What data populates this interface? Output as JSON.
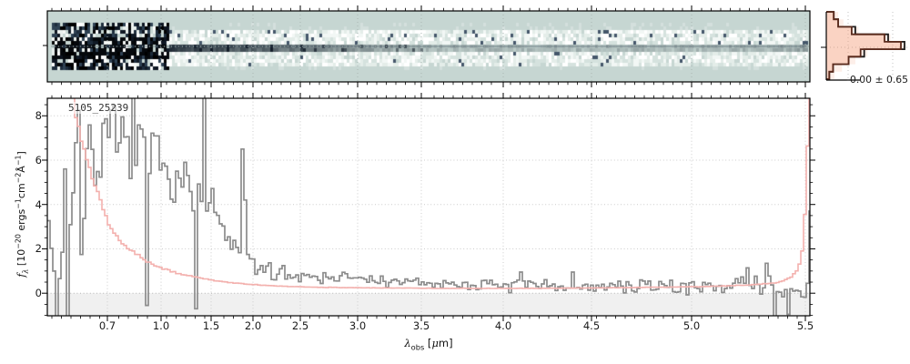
{
  "title_label": "5105_25239",
  "chart_data": [
    {
      "id": "spectrum-2d-cutout",
      "type": "heatmap",
      "description": "2D dispersed spectrum cutout: pale teal background, dark horizontal trace along center row fading to the right, strong black/white pixel noise on the left end, mottled light noise bands above and below the trace",
      "colors": {
        "background": "#c6d6d2",
        "trace_dark": "#141e2a",
        "speck": "#44566a"
      },
      "noise_seed": 11
    },
    {
      "id": "residual-histogram",
      "type": "bar",
      "orientation": "horizontal",
      "values_rel": [
        0.1,
        0.16,
        0.34,
        0.78,
        1.0,
        0.46,
        0.3,
        0.09,
        0.04
      ],
      "values_rel_secondary": [
        0.16,
        0.23,
        0.43,
        0.86,
        1.06,
        0.55,
        0.39,
        0.21,
        0.11
      ],
      "annotation": "-0.00 ± 0.65",
      "colors": {
        "outline": "#5a2b1d",
        "outline2": "#1c1c1c",
        "fill": "rgba(242,153,116,0.32)",
        "fill2": "rgba(242,153,116,0.16)"
      }
    },
    {
      "id": "spectrum-1d",
      "type": "line",
      "xlabel": "*λ*_{obs} [*μ*m]",
      "ylabel": "*f*_{*λ*} [10^{−20} ergs^{−1}cm^{−2}Å^{−1}]",
      "x_ticks": [
        [
          "0.7",
          118
        ],
        [
          "1.0",
          177
        ],
        [
          "1.5",
          232
        ],
        [
          "2.0",
          278
        ],
        [
          "2.5",
          330
        ],
        [
          "3.0",
          393
        ],
        [
          "3.5",
          463
        ],
        [
          "4.0",
          553
        ],
        [
          "4.5",
          650
        ],
        [
          "5.0",
          760
        ],
        [
          "5.5",
          885
        ]
      ],
      "y_ticks": [
        [
          "0",
          0
        ],
        [
          "2",
          2
        ],
        [
          "4",
          4
        ],
        [
          "6",
          6
        ],
        [
          "8",
          8
        ]
      ],
      "ylim": [
        -1.02,
        8.79
      ],
      "noise_seed": 7,
      "series": [
        {
          "name": "flux",
          "color": "#8c8c8c",
          "anchors": [
            [
              0.0,
              2.5,
              9.0
            ],
            [
              0.02,
              3.5,
              9.0
            ],
            [
              0.042,
              5.5,
              5.0
            ],
            [
              0.06,
              6.6,
              2.4
            ],
            [
              0.092,
              6.7,
              1.8
            ],
            [
              0.13,
              6.2,
              1.7
            ],
            [
              0.17,
              5.4,
              1.6
            ],
            [
              0.2,
              4.4,
              1.5
            ],
            [
              0.22,
              3.4,
              1.2
            ],
            [
              0.24,
              2.1,
              0.6
            ],
            [
              0.258,
              1.7,
              0.55
            ],
            [
              0.275,
              1.1,
              0.45
            ],
            [
              0.31,
              0.85,
              0.4
            ],
            [
              0.38,
              0.75,
              0.35
            ],
            [
              0.44,
              0.5,
              0.3
            ],
            [
              0.52,
              0.42,
              0.3
            ],
            [
              0.6,
              0.36,
              0.28
            ],
            [
              0.68,
              0.32,
              0.3
            ],
            [
              0.77,
              0.28,
              0.33
            ],
            [
              0.86,
              0.35,
              0.38
            ],
            [
              0.915,
              0.45,
              0.45
            ],
            [
              0.95,
              0.2,
              0.5
            ],
            [
              0.98,
              0.05,
              0.55
            ],
            [
              1.0,
              0.2,
              0.5
            ]
          ],
          "spikes": [
            [
              0.129,
              -0.55
            ],
            [
              0.195,
              -0.7
            ],
            [
              0.203,
              12
            ],
            [
              0.253,
              6.5
            ],
            [
              0.2565,
              4.2
            ],
            [
              0.62,
              0.95
            ],
            [
              0.686,
              0.95
            ],
            [
              0.943,
              1.35
            ],
            [
              0.952,
              -1.2
            ],
            [
              0.97,
              -0.95
            ],
            [
              0.999,
              3.7
            ]
          ]
        },
        {
          "name": "uncertainty",
          "color": "#f3b1ae",
          "anchors": [
            [
              0.0,
              12
            ],
            [
              0.03,
              8.8
            ],
            [
              0.042,
              7.0
            ],
            [
              0.055,
              5.5
            ],
            [
              0.066,
              4.3
            ],
            [
              0.075,
              3.4
            ],
            [
              0.085,
              2.7
            ],
            [
              0.1,
              2.15
            ],
            [
              0.115,
              1.8
            ],
            [
              0.13,
              1.4
            ],
            [
              0.149,
              1.1
            ],
            [
              0.175,
              0.85
            ],
            [
              0.2,
              0.68
            ],
            [
              0.222,
              0.55
            ],
            [
              0.245,
              0.45
            ],
            [
              0.27,
              0.38
            ],
            [
              0.3,
              0.32
            ],
            [
              0.35,
              0.27
            ],
            [
              0.42,
              0.24
            ],
            [
              0.52,
              0.22
            ],
            [
              0.64,
              0.22
            ],
            [
              0.76,
              0.25
            ],
            [
              0.86,
              0.3
            ],
            [
              0.92,
              0.37
            ],
            [
              0.955,
              0.48
            ],
            [
              0.972,
              0.68
            ],
            [
              0.983,
              1.1
            ],
            [
              0.99,
              2.2
            ],
            [
              0.995,
              6.0
            ],
            [
              0.998,
              12
            ]
          ]
        }
      ]
    }
  ]
}
